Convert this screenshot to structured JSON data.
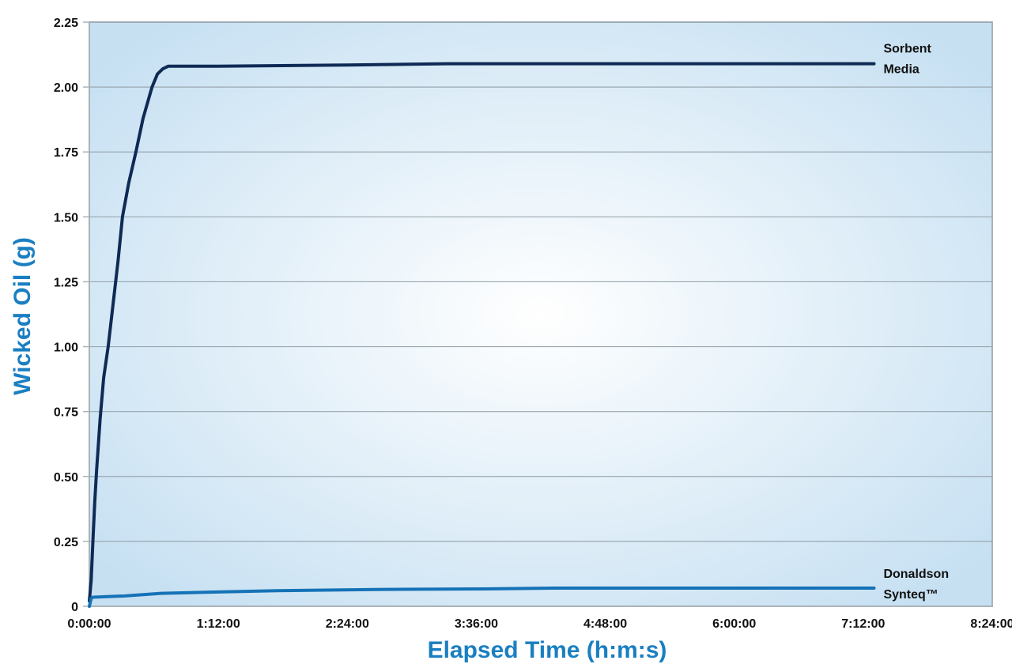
{
  "chart_data": {
    "type": "line",
    "title": "",
    "xlabel": "Elapsed Time (h:m:s)",
    "ylabel": "Wicked Oil (g)",
    "x_unit": "minutes",
    "xlim": [
      0,
      504
    ],
    "ylim": [
      0,
      2.25
    ],
    "x_ticks": [
      0,
      72,
      144,
      216,
      288,
      360,
      432,
      504
    ],
    "x_tick_labels": [
      "0:00:00",
      "1:12:00",
      "2:24:00",
      "3:36:00",
      "4:48:00",
      "6:00:00",
      "7:12:00",
      "8:24:00"
    ],
    "y_ticks": [
      0,
      0.25,
      0.5,
      0.75,
      1.0,
      1.25,
      1.5,
      1.75,
      2.0,
      2.25
    ],
    "y_tick_labels": [
      "0",
      "0.25",
      "0.50",
      "0.75",
      "1.00",
      "1.25",
      "1.50",
      "1.75",
      "2.00",
      "2.25"
    ],
    "grid": "horizontal",
    "series": [
      {
        "name": "Sorbent Media",
        "label_lines": [
          "Sorbent",
          "Media"
        ],
        "color": "#0f2a55",
        "x": [
          0,
          1,
          2,
          3,
          4,
          6,
          8,
          10.5,
          13,
          16,
          18.5,
          22,
          26,
          30,
          35,
          38,
          41,
          44,
          72,
          144,
          200,
          300,
          438
        ],
        "y": [
          0.02,
          0.1,
          0.25,
          0.4,
          0.52,
          0.72,
          0.88,
          1.0,
          1.15,
          1.33,
          1.5,
          1.63,
          1.75,
          1.88,
          2.0,
          2.05,
          2.07,
          2.08,
          2.08,
          2.085,
          2.09,
          2.09,
          2.09
        ]
      },
      {
        "name": "Donaldson Synteq™",
        "label_lines": [
          "Donaldson",
          "Synteq™"
        ],
        "color": "#1572b6",
        "x": [
          0,
          1,
          2,
          10,
          20,
          30,
          40,
          72,
          105,
          160,
          220,
          260,
          300,
          438
        ],
        "y": [
          0.0,
          0.03,
          0.035,
          0.037,
          0.04,
          0.045,
          0.05,
          0.055,
          0.06,
          0.065,
          0.067,
          0.07,
          0.07,
          0.07
        ]
      }
    ]
  },
  "colors": {
    "axis_title": "#1a7fc1",
    "plot_bg_center": "#ffffff",
    "plot_bg_edge": "#c6e0f2",
    "grid": "#9aa7b0"
  }
}
